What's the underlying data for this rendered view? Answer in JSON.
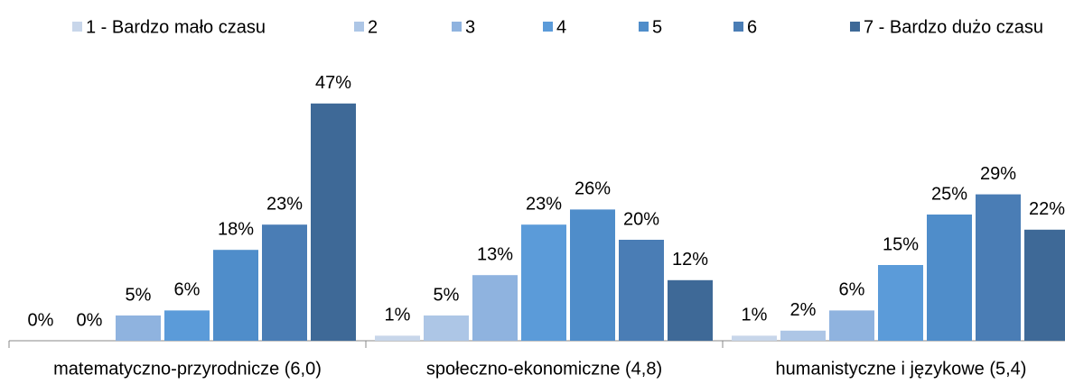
{
  "chart_data": {
    "type": "bar",
    "categories": [
      "matematyczno-przyrodnicze (6,0)",
      "społeczno-ekonomiczne (4,8)",
      "humanistyczne i językowe (5,4)"
    ],
    "series": [
      {
        "name": "1 - Bardzo mało czasu",
        "color": "#c8d6ea",
        "values": [
          0,
          1,
          1
        ],
        "value_labels": [
          "0%",
          "1%",
          "1%"
        ]
      },
      {
        "name": "2",
        "color": "#adc6e6",
        "values": [
          0,
          5,
          2
        ],
        "value_labels": [
          "0%",
          "5%",
          "2%"
        ]
      },
      {
        "name": "3",
        "color": "#8fb3df",
        "values": [
          5,
          13,
          6
        ],
        "value_labels": [
          "5%",
          "13%",
          "6%"
        ]
      },
      {
        "name": "4",
        "color": "#5b9bd9",
        "values": [
          6,
          23,
          15
        ],
        "value_labels": [
          "6%",
          "23%",
          "15%"
        ]
      },
      {
        "name": "5",
        "color": "#4f8dca",
        "values": [
          18,
          26,
          25
        ],
        "value_labels": [
          "18%",
          "26%",
          "25%"
        ]
      },
      {
        "name": "6",
        "color": "#4a7db5",
        "values": [
          23,
          20,
          29
        ],
        "value_labels": [
          "23%",
          "20%",
          "29%"
        ]
      },
      {
        "name": "7 - Bardzo dużo czasu",
        "color": "#3e6997",
        "values": [
          47,
          12,
          22
        ],
        "value_labels": [
          "47%",
          "12%",
          "22%"
        ]
      }
    ]
  }
}
